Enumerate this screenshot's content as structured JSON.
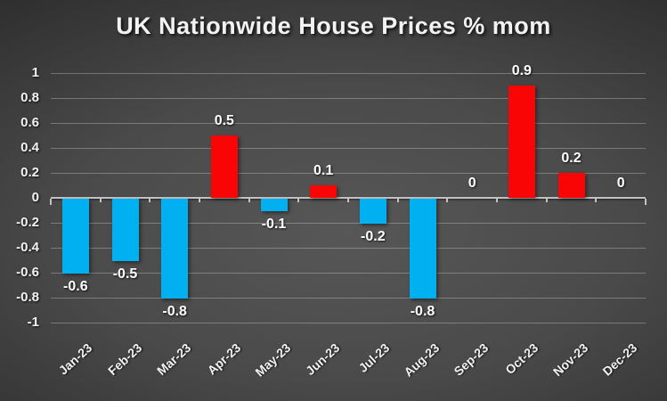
{
  "chart_data": {
    "type": "bar",
    "title": "UK Nationwide House Prices % mom",
    "categories": [
      "Jan-23",
      "Feb-23",
      "Mar-23",
      "Apr-23",
      "May-23",
      "Jun-23",
      "Jul-23",
      "Aug-23",
      "Sep-23",
      "Oct-23",
      "Nov-23",
      "Dec-23"
    ],
    "values": [
      -0.6,
      -0.5,
      -0.8,
      0.5,
      -0.1,
      0.1,
      -0.2,
      -0.8,
      0,
      0.9,
      0.2,
      0
    ],
    "value_labels": [
      "-0.6",
      "-0.5",
      "-0.8",
      "0.5",
      "-0.1",
      "0.1",
      "-0.2",
      "-0.8",
      "0",
      "0.9",
      "0.2",
      "0"
    ],
    "xlabel": "",
    "ylabel": "",
    "ylim": [
      -1,
      1
    ],
    "ytick_step": 0.2,
    "yticks": [
      "1",
      "0.8",
      "0.6",
      "0.4",
      "0.2",
      "0",
      "-0.2",
      "-0.4",
      "-0.6",
      "-0.8",
      "-1"
    ],
    "grid": true,
    "legend": false,
    "colors": {
      "positive_bar": "#fa0505",
      "negative_bar": "#00b0f0",
      "gridline": "rgba(255,255,255,0.28)",
      "axis_line": "#c2c2c2",
      "text": "#f2f2f2"
    }
  }
}
